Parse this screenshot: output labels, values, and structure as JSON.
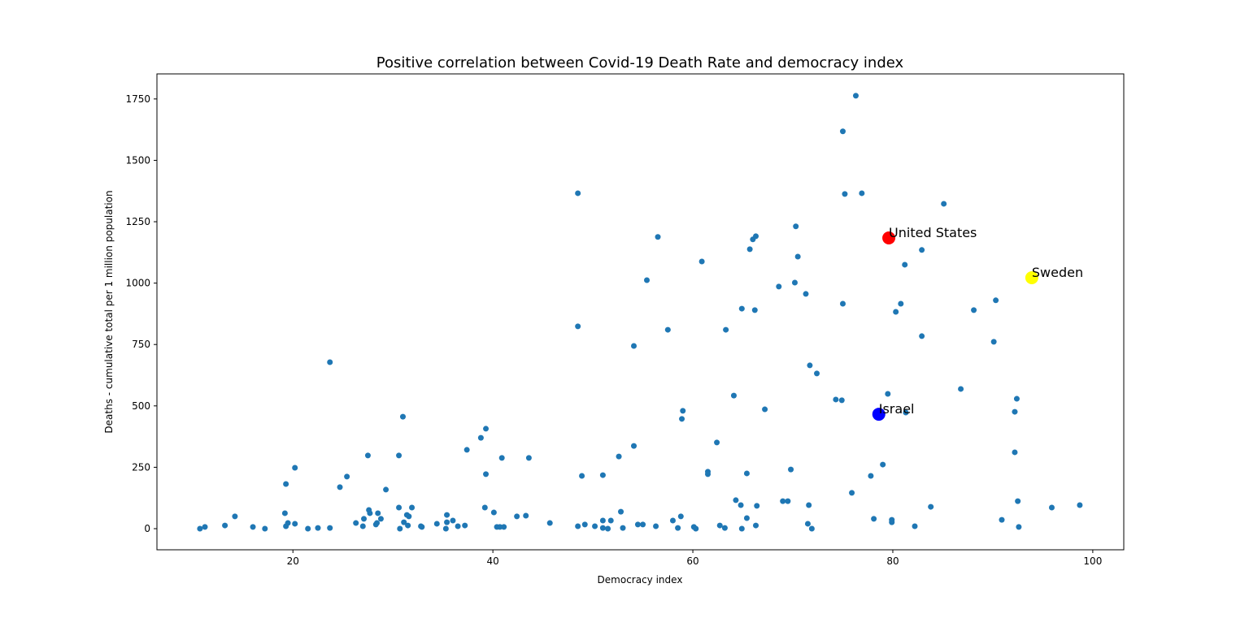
{
  "chart_data": {
    "type": "scatter",
    "title": "Positive correlation between Covid-19 Death Rate and democracy index",
    "xlabel": "Democracy index",
    "ylabel": "Deaths - cumulative total per 1 million population",
    "xlim": [
      6.4,
      103.1
    ],
    "ylim": [
      -86,
      1852
    ],
    "xticks": [
      20,
      40,
      60,
      80,
      100
    ],
    "yticks": [
      0,
      250,
      500,
      750,
      1000,
      1250,
      1500,
      1750
    ],
    "series": [
      {
        "color": "#1f77b4",
        "x": [
          10.7,
          11.2,
          13.2,
          14.2,
          16,
          17.2,
          19.2,
          19.3,
          19.5,
          19.3,
          20.2,
          20.2,
          21.5,
          22.5,
          23.7,
          23.7,
          24.7,
          25.4,
          26.3,
          27.1,
          27,
          27.5,
          27.6,
          27.7,
          28.3,
          28.5,
          28.4,
          28.8,
          29.3,
          30.6,
          30.6,
          30.7,
          31,
          31.1,
          31.4,
          31.6,
          31.5,
          31.9,
          32.8,
          32.9,
          34.4,
          35.4,
          35.4,
          35.3,
          36,
          36.5,
          37.2,
          37.4,
          38.8,
          39.3,
          39.3,
          39.2,
          40.1,
          40.4,
          40.7,
          40.9,
          41.1,
          42.4,
          43.3,
          43.6,
          45.7,
          48.5,
          48.5,
          48.5,
          48.9,
          49.2,
          50.2,
          51,
          51,
          51,
          51.5,
          51.8,
          52.6,
          52.8,
          53,
          54.1,
          54.1,
          54.5,
          55,
          55.4,
          56.3,
          56.5,
          57.5,
          58,
          58.5,
          58.9,
          59,
          58.8,
          60.1,
          60.3,
          60.9,
          61.5,
          61.5,
          62.4,
          62.7,
          63.3,
          63.2,
          64.1,
          64.3,
          64.8,
          64.9,
          64.9,
          65.4,
          65.4,
          65.7,
          66,
          66.3,
          66.2,
          66.3,
          66.4,
          67.2,
          68.6,
          69,
          69.5,
          69.8,
          70.2,
          70.3,
          70.5,
          71.3,
          71.6,
          71.5,
          71.7,
          71.9,
          72.4,
          74.3,
          74.9,
          75,
          75,
          75.2,
          75.9,
          76.3,
          76.9,
          77.8,
          78.1,
          79,
          79.5,
          79.9,
          79.9,
          80.3,
          80.8,
          81.2,
          81.3,
          82.2,
          82.9,
          82.9,
          83.8,
          85.1,
          86.8,
          88.1,
          90.1,
          90.3,
          90.9,
          92.2,
          92.2,
          92.4,
          92.5,
          92.6,
          95.9,
          98.7
        ],
        "values": [
          0,
          7,
          13,
          50,
          7,
          0,
          63,
          10,
          23,
          182,
          20,
          248,
          0,
          3,
          3,
          678,
          169,
          212,
          23,
          40,
          10,
          298,
          76,
          63,
          17,
          63,
          23,
          40,
          159,
          86,
          298,
          0,
          456,
          26,
          56,
          50,
          13,
          86,
          10,
          7,
          20,
          56,
          26,
          0,
          33,
          10,
          13,
          321,
          370,
          407,
          222,
          86,
          66,
          7,
          7,
          288,
          7,
          50,
          53,
          288,
          23,
          10,
          824,
          1366,
          215,
          17,
          10,
          33,
          218,
          3,
          0,
          33,
          294,
          69,
          3,
          337,
          744,
          17,
          17,
          1012,
          10,
          1188,
          810,
          33,
          3,
          447,
          480,
          50,
          7,
          0,
          1088,
          232,
          222,
          351,
          13,
          810,
          3,
          542,
          116,
          96,
          896,
          0,
          225,
          43,
          1138,
          1178,
          1191,
          890,
          13,
          93,
          486,
          986,
          112,
          112,
          241,
          1002,
          1231,
          1108,
          956,
          96,
          20,
          665,
          0,
          632,
          526,
          523,
          916,
          1618,
          1363,
          146,
          1763,
          1366,
          215,
          40,
          261,
          549,
          36,
          26,
          883,
          916,
          1075,
          473,
          10,
          1135,
          784,
          89,
          1323,
          569,
          890,
          761,
          930,
          36,
          476,
          311,
          529,
          112,
          7,
          86,
          96
        ]
      }
    ],
    "annotations": [
      {
        "text": "United States",
        "x": 79.6,
        "y": 1184,
        "color": "red"
      },
      {
        "text": "Sweden",
        "x": 93.9,
        "y": 1022,
        "color": "yellow"
      },
      {
        "text": "Israel",
        "x": 78.6,
        "y": 466,
        "color": "blue"
      }
    ]
  }
}
